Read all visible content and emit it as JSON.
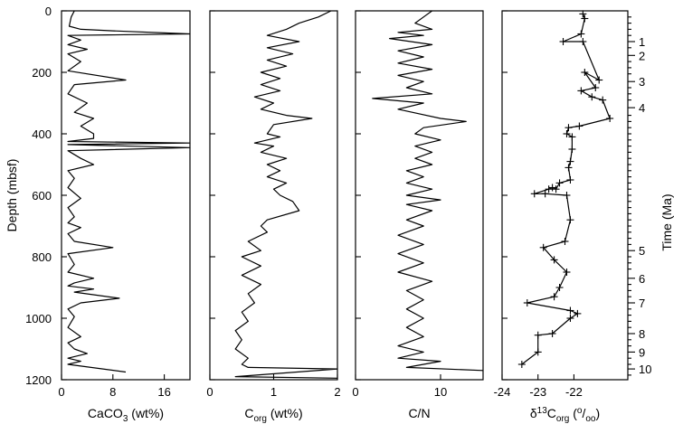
{
  "chart_data": {
    "type": "line",
    "orientation": "depth-profile",
    "shared_y": {
      "label": "Depth (mbsf)",
      "range": [
        0,
        1200
      ],
      "inverted": true,
      "ticks": [
        0,
        200,
        400,
        600,
        800,
        1000,
        1200
      ],
      "tick_labels": [
        "0",
        "200",
        "400",
        "600",
        "800",
        "1000",
        "1200"
      ]
    },
    "panels": [
      {
        "xlabel_main": "CaCO",
        "xlabel_sub": "3",
        "xlabel_tail": " (wt%)",
        "xlim": [
          0,
          20
        ],
        "xticks": [
          0,
          8,
          16
        ],
        "xtick_labels": [
          "0",
          "8",
          "16"
        ],
        "markers": false,
        "points": [
          [
            2,
            0
          ],
          [
            1.5,
            20
          ],
          [
            1.2,
            50
          ],
          [
            3,
            60
          ],
          [
            8,
            65
          ],
          [
            20,
            75
          ],
          [
            1,
            80
          ],
          [
            3,
            95
          ],
          [
            1,
            110
          ],
          [
            4,
            125
          ],
          [
            1,
            140
          ],
          [
            3,
            165
          ],
          [
            1,
            195
          ],
          [
            10,
            225
          ],
          [
            2,
            240
          ],
          [
            1,
            270
          ],
          [
            4,
            300
          ],
          [
            2,
            330
          ],
          [
            5,
            350
          ],
          [
            3,
            375
          ],
          [
            5,
            400
          ],
          [
            5,
            415
          ],
          [
            1,
            425
          ],
          [
            20,
            430
          ],
          [
            1,
            435
          ],
          [
            20,
            445
          ],
          [
            1,
            455
          ],
          [
            3,
            480
          ],
          [
            5,
            500
          ],
          [
            1,
            520
          ],
          [
            2,
            545
          ],
          [
            1,
            575
          ],
          [
            3,
            610
          ],
          [
            1,
            640
          ],
          [
            2,
            670
          ],
          [
            1,
            690
          ],
          [
            3,
            705
          ],
          [
            1,
            725
          ],
          [
            2,
            750
          ],
          [
            8,
            770
          ],
          [
            1,
            790
          ],
          [
            2,
            825
          ],
          [
            1,
            850
          ],
          [
            5,
            870
          ],
          [
            2,
            885
          ],
          [
            1,
            895
          ],
          [
            5,
            905
          ],
          [
            2,
            915
          ],
          [
            9,
            935
          ],
          [
            3,
            950
          ],
          [
            1,
            970
          ],
          [
            2,
            995
          ],
          [
            1,
            1030
          ],
          [
            3,
            1060
          ],
          [
            1,
            1080
          ],
          [
            2,
            1100
          ],
          [
            4,
            1115
          ],
          [
            1,
            1130
          ],
          [
            3,
            1140
          ],
          [
            1,
            1150
          ],
          [
            10,
            1175
          ]
        ]
      },
      {
        "xlabel_main": "C",
        "xlabel_sub": "org",
        "xlabel_tail": " (wt%)",
        "xlim": [
          0,
          2
        ],
        "xticks": [
          0,
          1,
          2
        ],
        "xtick_labels": [
          "0",
          "1",
          "2"
        ],
        "markers": false,
        "points": [
          [
            1.9,
            0
          ],
          [
            1.7,
            20
          ],
          [
            1.4,
            40
          ],
          [
            1.2,
            60
          ],
          [
            0.9,
            80
          ],
          [
            1.4,
            100
          ],
          [
            0.9,
            120
          ],
          [
            1.3,
            140
          ],
          [
            0.9,
            160
          ],
          [
            1.2,
            180
          ],
          [
            0.8,
            200
          ],
          [
            1.1,
            220
          ],
          [
            0.8,
            240
          ],
          [
            1.1,
            260
          ],
          [
            0.7,
            280
          ],
          [
            1.0,
            300
          ],
          [
            0.8,
            320
          ],
          [
            1.2,
            340
          ],
          [
            1.6,
            350
          ],
          [
            1.0,
            370
          ],
          [
            0.9,
            400
          ],
          [
            1.1,
            410
          ],
          [
            0.7,
            430
          ],
          [
            1.0,
            440
          ],
          [
            0.8,
            460
          ],
          [
            1.2,
            480
          ],
          [
            0.9,
            500
          ],
          [
            1.1,
            520
          ],
          [
            0.9,
            540
          ],
          [
            1.2,
            560
          ],
          [
            1.0,
            580
          ],
          [
            1.1,
            600
          ],
          [
            1.3,
            620
          ],
          [
            1.4,
            650
          ],
          [
            0.9,
            680
          ],
          [
            0.8,
            700
          ],
          [
            0.9,
            720
          ],
          [
            0.6,
            750
          ],
          [
            0.8,
            780
          ],
          [
            0.5,
            800
          ],
          [
            0.8,
            830
          ],
          [
            0.5,
            860
          ],
          [
            0.8,
            890
          ],
          [
            0.6,
            920
          ],
          [
            0.7,
            950
          ],
          [
            0.5,
            980
          ],
          [
            0.6,
            1010
          ],
          [
            0.4,
            1040
          ],
          [
            0.5,
            1070
          ],
          [
            0.4,
            1100
          ],
          [
            0.6,
            1130
          ],
          [
            0.5,
            1150
          ],
          [
            0.6,
            1160
          ],
          [
            2.0,
            1165
          ],
          [
            0.4,
            1190
          ],
          [
            2.0,
            1195
          ]
        ]
      },
      {
        "xlabel_main": "C/N",
        "xlabel_sub": "",
        "xlabel_tail": "",
        "xlim": [
          0,
          15
        ],
        "xticks": [
          0,
          10
        ],
        "xtick_labels": [
          "0",
          "10"
        ],
        "markers": false,
        "points": [
          [
            9,
            0
          ],
          [
            8,
            20
          ],
          [
            7,
            40
          ],
          [
            9,
            60
          ],
          [
            5,
            70
          ],
          [
            8,
            80
          ],
          [
            4,
            90
          ],
          [
            9,
            110
          ],
          [
            5,
            130
          ],
          [
            8,
            150
          ],
          [
            5,
            170
          ],
          [
            9,
            190
          ],
          [
            5,
            210
          ],
          [
            8,
            230
          ],
          [
            6,
            250
          ],
          [
            9,
            270
          ],
          [
            2,
            285
          ],
          [
            8,
            300
          ],
          [
            5,
            320
          ],
          [
            10,
            350
          ],
          [
            13,
            360
          ],
          [
            8,
            380
          ],
          [
            7,
            400
          ],
          [
            10,
            420
          ],
          [
            7,
            440
          ],
          [
            9,
            460
          ],
          [
            7,
            480
          ],
          [
            9,
            500
          ],
          [
            6,
            520
          ],
          [
            8,
            540
          ],
          [
            6,
            560
          ],
          [
            9,
            580
          ],
          [
            6,
            600
          ],
          [
            10,
            615
          ],
          [
            6,
            630
          ],
          [
            9,
            650
          ],
          [
            6,
            680
          ],
          [
            8,
            700
          ],
          [
            5,
            730
          ],
          [
            8,
            760
          ],
          [
            5,
            790
          ],
          [
            8,
            820
          ],
          [
            5,
            850
          ],
          [
            9,
            880
          ],
          [
            6,
            910
          ],
          [
            8,
            940
          ],
          [
            6,
            970
          ],
          [
            8,
            1000
          ],
          [
            6,
            1030
          ],
          [
            8,
            1060
          ],
          [
            5,
            1090
          ],
          [
            8,
            1110
          ],
          [
            5,
            1130
          ],
          [
            10,
            1140
          ],
          [
            6,
            1160
          ],
          [
            15,
            1170
          ]
        ]
      },
      {
        "xlabel_main": "δ",
        "xlabel_sup": "13",
        "xlabel_main2": "C",
        "xlabel_sub": "org",
        "xlabel_tail": " (",
        "xlabel_unit_sup": "o",
        "xlabel_unit_mid": "/",
        "xlabel_unit_sub": "oo",
        "xlabel_unit_close": ")",
        "xlim": [
          -24,
          -20.5
        ],
        "xticks": [
          -24,
          -23,
          -22
        ],
        "xtick_labels": [
          "-24",
          "-23",
          "-22"
        ],
        "markers": true,
        "points": [
          [
            -21.75,
            10
          ],
          [
            -21.7,
            25
          ],
          [
            -21.8,
            75
          ],
          [
            -22.3,
            100
          ],
          [
            -21.75,
            100
          ],
          [
            -21.3,
            225
          ],
          [
            -21.7,
            200
          ],
          [
            -21.4,
            250
          ],
          [
            -21.8,
            260
          ],
          [
            -21.5,
            280
          ],
          [
            -21.2,
            290
          ],
          [
            -21.0,
            350
          ],
          [
            -21.85,
            375
          ],
          [
            -22.15,
            380
          ],
          [
            -22.2,
            400
          ],
          [
            -22.05,
            410
          ],
          [
            -22.05,
            450
          ],
          [
            -22.1,
            490
          ],
          [
            -22.15,
            510
          ],
          [
            -22.1,
            550
          ],
          [
            -22.4,
            560
          ],
          [
            -22.5,
            580
          ],
          [
            -22.6,
            575
          ],
          [
            -22.7,
            580
          ],
          [
            -23.1,
            595
          ],
          [
            -22.8,
            595
          ],
          [
            -22.2,
            600
          ],
          [
            -22.1,
            680
          ],
          [
            -22.25,
            750
          ],
          [
            -22.85,
            770
          ],
          [
            -22.55,
            810
          ],
          [
            -22.2,
            850
          ],
          [
            -22.4,
            900
          ],
          [
            -22.55,
            930
          ],
          [
            -23.3,
            950
          ],
          [
            -22.1,
            975
          ],
          [
            -21.9,
            985
          ],
          [
            -22.1,
            1000
          ],
          [
            -22.6,
            1050
          ],
          [
            -23.0,
            1055
          ],
          [
            -23.0,
            1110
          ],
          [
            -23.45,
            1150
          ]
        ]
      }
    ],
    "right_axis": {
      "label": "Time (Ma)",
      "ticks": [
        {
          "label": "1",
          "depth": 100
        },
        {
          "label": "2",
          "depth": 145
        },
        {
          "label": "3",
          "depth": 230
        },
        {
          "label": "4",
          "depth": 315
        },
        {
          "label": "5",
          "depth": 780
        },
        {
          "label": "6",
          "depth": 870
        },
        {
          "label": "7",
          "depth": 950
        },
        {
          "label": "8",
          "depth": 1050
        },
        {
          "label": "9",
          "depth": 1110
        },
        {
          "label": "10",
          "depth": 1165
        }
      ],
      "minor_ticks": [
        20,
        40,
        60,
        80,
        120,
        165,
        185,
        205,
        250,
        270,
        290,
        340,
        360,
        380,
        400,
        420,
        440,
        460,
        480,
        500,
        520,
        540,
        560,
        580,
        600,
        620,
        640,
        660,
        680,
        700,
        720,
        740,
        760,
        800,
        820,
        840,
        890,
        910,
        930,
        970,
        990,
        1010,
        1030,
        1070,
        1090,
        1130,
        1150,
        1185
      ]
    }
  }
}
